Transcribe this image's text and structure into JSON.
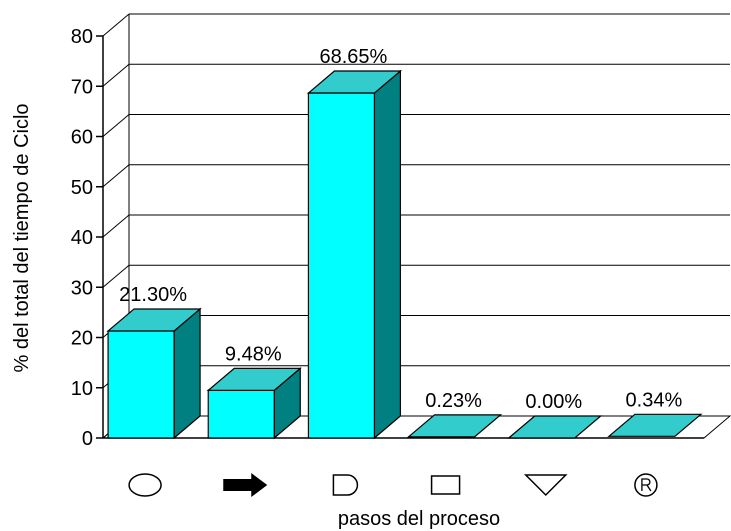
{
  "chart_data": {
    "type": "bar",
    "categories": [
      "circle-symbol",
      "arrow-symbol",
      "delay-d-symbol",
      "square-symbol",
      "triangle-down-symbol",
      "registered-r-symbol"
    ],
    "category_icons": [
      "circle-icon",
      "arrow-right-icon",
      "delay-d-icon",
      "square-icon",
      "triangle-down-icon",
      "registered-r-icon"
    ],
    "values": [
      21.3,
      9.48,
      68.65,
      0.23,
      0.0,
      0.34
    ],
    "data_labels": [
      "21.30%",
      "9.48%",
      "68.65%",
      "0.23%",
      "0.00%",
      "0.34%"
    ],
    "xlabel": "pasos del proceso",
    "ylabel": "% del total del tiempo de Ciclo",
    "ylim": [
      0,
      80
    ],
    "yticks": [
      0,
      10,
      20,
      30,
      40,
      50,
      60,
      70,
      80
    ],
    "grid": true,
    "three_d": true,
    "legend": "none",
    "colors": {
      "bar_front": "#00FFFF",
      "bar_top": "#33CCCC",
      "bar_side": "#008080",
      "grid": "#000000",
      "icon_fill": "#000000"
    }
  }
}
